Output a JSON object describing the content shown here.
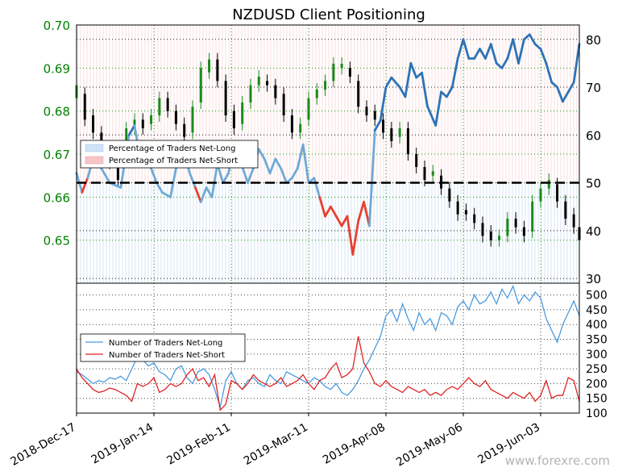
{
  "chart_data": [
    {
      "type": "candlestick+line",
      "title": "NZDUSD Client Positioning",
      "left_axis": {
        "label": "",
        "ylim": [
          0.64,
          0.7
        ],
        "ticks": [
          0.65,
          0.66,
          0.67,
          0.68,
          0.69,
          0.7
        ],
        "tick_labels": [
          "0.65",
          "0.66",
          "0.67",
          "0.68",
          "0.69",
          "0.70"
        ],
        "tick_color": "#008000"
      },
      "right_axis": {
        "label": "",
        "ylim": [
          29,
          83
        ],
        "ticks": [
          30,
          40,
          50,
          60,
          70,
          80
        ],
        "tick_labels": [
          "30",
          "40",
          "50",
          "60",
          "70",
          "80"
        ]
      },
      "x_axis": {
        "start_date": "2018-12-17",
        "end_date": "2019-06-14",
        "tick_labels": [
          "2018-Dec-17",
          "2019-Jan-14",
          "2019-Feb-11",
          "2019-Mar-11",
          "2019-Apr-08",
          "2019-May-06",
          "2019-Jun-03"
        ],
        "tick_days": [
          0,
          28,
          56,
          84,
          112,
          140,
          168
        ]
      },
      "reference_line": {
        "value": 50,
        "style": "dashed",
        "color": "#000000"
      },
      "legend": {
        "location": "center-left",
        "entries": [
          {
            "label": "Percentage of Traders Net-Long",
            "color": "#cfe3f7"
          },
          {
            "label": "Percentage of Traders Net-Short",
            "color": "#f6c6c6"
          }
        ]
      },
      "series": [
        {
          "name": "Percentage of Traders Net-Long",
          "kind": "line",
          "axis": "right",
          "color_above_50": "#2d73b6",
          "color_below_50_net_long": "#6ea9d6",
          "color_net_short": "#e8402f",
          "x_days": [
            0,
            2,
            4,
            6,
            9,
            12,
            16,
            19,
            21,
            23,
            25,
            27,
            29,
            31,
            34,
            36,
            39,
            41,
            43,
            45,
            47,
            49,
            51,
            53,
            55,
            57,
            59,
            62,
            64,
            66,
            68,
            70,
            72,
            74,
            76,
            78,
            80,
            82,
            84,
            86,
            88,
            90,
            92,
            94,
            96,
            98,
            100,
            102,
            104,
            106,
            108,
            110,
            112,
            114,
            117,
            119,
            121,
            123,
            125,
            127,
            130,
            132,
            134,
            136,
            138,
            140,
            142,
            144,
            146,
            148,
            150,
            152,
            154,
            156,
            158,
            160,
            162,
            164,
            166,
            168,
            170,
            172,
            174,
            176,
            178,
            180,
            182
          ],
          "values": [
            52,
            48,
            51,
            55,
            53,
            50,
            49,
            60,
            62,
            55,
            58,
            53,
            50,
            48,
            47,
            53,
            56,
            52,
            49,
            46,
            49,
            47,
            54,
            50,
            52,
            58,
            55,
            50,
            53,
            57,
            55,
            52,
            55,
            53,
            50,
            51,
            53,
            58,
            50,
            51,
            47,
            43,
            45,
            43,
            41,
            43,
            35,
            42,
            46,
            41,
            61,
            63,
            70,
            72,
            70,
            68,
            75,
            72,
            73,
            66,
            62,
            69,
            68,
            70,
            76,
            80,
            76,
            76,
            78,
            76,
            79,
            75,
            74,
            76,
            80,
            75,
            80,
            81,
            79,
            78,
            75,
            71,
            70,
            67,
            69,
            71,
            79
          ]
        },
        {
          "name": "NZDUSD",
          "kind": "candlestick",
          "axis": "left",
          "up_color": "#1a8a1a",
          "down_color": "#000000",
          "x_days": [
            0,
            3,
            6,
            9,
            12,
            15,
            18,
            21,
            24,
            27,
            30,
            33,
            36,
            39,
            42,
            45,
            48,
            51,
            54,
            57,
            60,
            63,
            66,
            69,
            72,
            75,
            78,
            81,
            84,
            87,
            90,
            93,
            96,
            99,
            102,
            105,
            108,
            111,
            114,
            117,
            120,
            123,
            126,
            129,
            132,
            135,
            138,
            141,
            144,
            147,
            150,
            153,
            156,
            159,
            162,
            165,
            168,
            171,
            174,
            177,
            180,
            182
          ],
          "open": [
            0.683,
            0.684,
            0.679,
            0.675,
            0.671,
            0.668,
            0.671,
            0.676,
            0.678,
            0.677,
            0.679,
            0.683,
            0.68,
            0.677,
            0.675,
            0.682,
            0.689,
            0.692,
            0.687,
            0.68,
            0.677,
            0.682,
            0.686,
            0.687,
            0.686,
            0.684,
            0.679,
            0.675,
            0.678,
            0.683,
            0.685,
            0.687,
            0.69,
            0.69,
            0.687,
            0.681,
            0.68,
            0.678,
            0.676,
            0.674,
            0.676,
            0.67,
            0.667,
            0.665,
            0.665,
            0.662,
            0.659,
            0.657,
            0.656,
            0.654,
            0.652,
            0.65,
            0.651,
            0.655,
            0.653,
            0.652,
            0.659,
            0.662,
            0.663,
            0.659,
            0.656,
            0.653
          ],
          "close": [
            0.686,
            0.678,
            0.675,
            0.671,
            0.668,
            0.664,
            0.676,
            0.678,
            0.676,
            0.679,
            0.683,
            0.68,
            0.677,
            0.674,
            0.681,
            0.69,
            0.692,
            0.687,
            0.679,
            0.676,
            0.682,
            0.686,
            0.688,
            0.686,
            0.683,
            0.679,
            0.675,
            0.677,
            0.683,
            0.685,
            0.687,
            0.691,
            0.691,
            0.688,
            0.681,
            0.679,
            0.678,
            0.675,
            0.673,
            0.676,
            0.67,
            0.667,
            0.664,
            0.666,
            0.662,
            0.659,
            0.656,
            0.656,
            0.654,
            0.651,
            0.65,
            0.651,
            0.655,
            0.653,
            0.651,
            0.659,
            0.662,
            0.664,
            0.659,
            0.655,
            0.653,
            0.65
          ]
        }
      ]
    },
    {
      "type": "line",
      "ylim": [
        100,
        540
      ],
      "ticks": [
        100,
        150,
        200,
        250,
        300,
        350,
        400,
        450,
        500
      ],
      "tick_labels": [
        "100",
        "150",
        "200",
        "250",
        "300",
        "350",
        "400",
        "450",
        "500"
      ],
      "legend": {
        "location": "center-left",
        "entries": [
          {
            "label": "Number of Traders Net-Long",
            "color": "#4a9be0"
          },
          {
            "label": "Number of Traders Net-Short",
            "color": "#e02222"
          }
        ]
      },
      "series": [
        {
          "name": "Number of Traders Net-Long",
          "color": "#4a9be0",
          "x_days": [
            0,
            2,
            4,
            6,
            8,
            10,
            12,
            14,
            16,
            18,
            20,
            22,
            24,
            26,
            28,
            30,
            32,
            34,
            36,
            38,
            40,
            42,
            44,
            46,
            48,
            50,
            52,
            54,
            56,
            58,
            60,
            62,
            64,
            66,
            68,
            70,
            72,
            74,
            76,
            78,
            80,
            82,
            84,
            86,
            88,
            90,
            92,
            94,
            96,
            98,
            100,
            102,
            104,
            106,
            108,
            110,
            112,
            114,
            116,
            118,
            120,
            122,
            124,
            126,
            128,
            130,
            132,
            134,
            136,
            138,
            140,
            142,
            144,
            146,
            148,
            150,
            152,
            154,
            156,
            158,
            160,
            162,
            164,
            166,
            168,
            170,
            172,
            174,
            176,
            178,
            180,
            182
          ],
          "values": [
            240,
            230,
            215,
            200,
            210,
            205,
            220,
            215,
            225,
            210,
            250,
            290,
            280,
            260,
            270,
            240,
            230,
            210,
            250,
            260,
            220,
            200,
            240,
            250,
            230,
            180,
            120,
            210,
            240,
            200,
            180,
            210,
            220,
            200,
            190,
            230,
            210,
            200,
            240,
            230,
            220,
            210,
            200,
            220,
            210,
            190,
            180,
            200,
            170,
            160,
            180,
            210,
            250,
            280,
            320,
            360,
            430,
            450,
            410,
            470,
            420,
            380,
            440,
            400,
            420,
            380,
            440,
            430,
            400,
            460,
            480,
            450,
            500,
            470,
            480,
            510,
            470,
            520,
            490,
            530,
            470,
            500,
            480,
            510,
            490,
            420,
            380,
            340,
            400,
            440,
            480,
            430
          ]
        },
        {
          "name": "Number of Traders Net-Short",
          "color": "#e02222",
          "x_days": [
            0,
            2,
            4,
            6,
            8,
            10,
            12,
            14,
            16,
            18,
            20,
            22,
            24,
            26,
            28,
            30,
            32,
            34,
            36,
            38,
            40,
            42,
            44,
            46,
            48,
            50,
            52,
            54,
            56,
            58,
            60,
            62,
            64,
            66,
            68,
            70,
            72,
            74,
            76,
            78,
            80,
            82,
            84,
            86,
            88,
            90,
            92,
            94,
            96,
            98,
            100,
            102,
            104,
            106,
            108,
            110,
            112,
            114,
            116,
            118,
            120,
            122,
            124,
            126,
            128,
            130,
            132,
            134,
            136,
            138,
            140,
            142,
            144,
            146,
            148,
            150,
            152,
            154,
            156,
            158,
            160,
            162,
            164,
            166,
            168,
            170,
            172,
            174,
            176,
            178,
            180,
            182
          ],
          "values": [
            250,
            220,
            200,
            180,
            170,
            175,
            185,
            180,
            170,
            160,
            140,
            200,
            190,
            200,
            220,
            170,
            180,
            200,
            190,
            200,
            230,
            250,
            210,
            220,
            190,
            230,
            110,
            130,
            210,
            200,
            180,
            200,
            230,
            210,
            200,
            190,
            200,
            220,
            190,
            200,
            210,
            230,
            200,
            180,
            210,
            220,
            250,
            270,
            220,
            230,
            250,
            360,
            270,
            240,
            200,
            190,
            210,
            190,
            180,
            170,
            190,
            180,
            170,
            180,
            160,
            170,
            160,
            180,
            190,
            180,
            200,
            220,
            200,
            190,
            210,
            180,
            170,
            160,
            150,
            170,
            160,
            150,
            170,
            140,
            160,
            210,
            150,
            160,
            160,
            220,
            210,
            140
          ]
        }
      ]
    }
  ],
  "watermark": "www.forexre.com"
}
